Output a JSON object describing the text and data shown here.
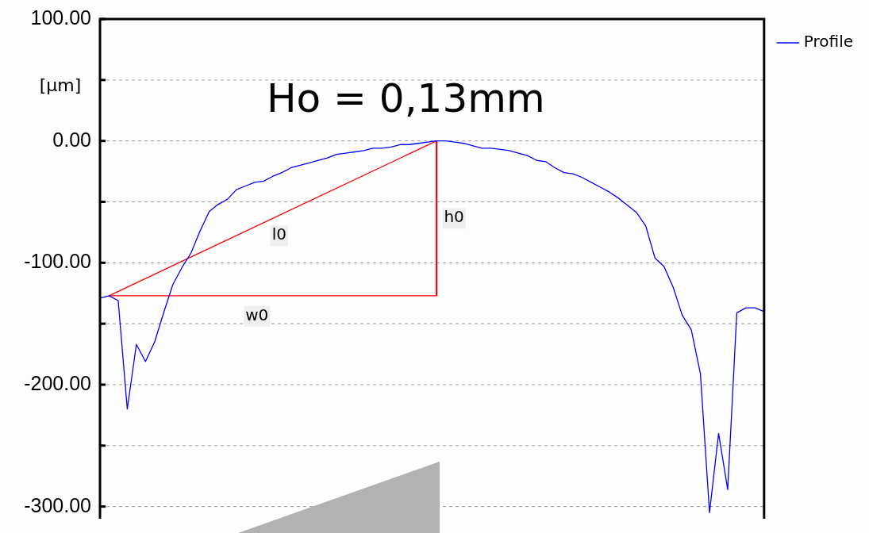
{
  "chart_data": {
    "type": "line",
    "ylabel": "[µm]",
    "annotations": [
      "Ho = 0,13mm"
    ],
    "categories": [
      null,
      null,
      null,
      null,
      null,
      null,
      null,
      null,
      null,
      null,
      null,
      null,
      null,
      null,
      null,
      null,
      null,
      null,
      null,
      null,
      null,
      null,
      null,
      null,
      null,
      null,
      null,
      null,
      null,
      null,
      null,
      null,
      null,
      null,
      null,
      null,
      null,
      null,
      null,
      null,
      null,
      null,
      null,
      null,
      null,
      null,
      null,
      null,
      null,
      null,
      null,
      null,
      null,
      null,
      null,
      null,
      null,
      null,
      null,
      null,
      null,
      null,
      null,
      null,
      null,
      null,
      null,
      null,
      null,
      null,
      null,
      null,
      null,
      null
    ],
    "series": [
      {
        "name": "Profile",
        "color": "#0000ff",
        "values": [
          -129,
          -127,
          -131,
          -220,
          -167,
          -181,
          -165,
          -141,
          -118,
          -104,
          -92,
          -74,
          -58,
          -52,
          -48,
          -40,
          -37,
          -34,
          -33,
          -29,
          -26,
          -22,
          -20,
          -18,
          -16,
          -14,
          -11,
          -10,
          -9,
          -8,
          -6,
          -6,
          -5,
          -3,
          -3,
          -2,
          -1,
          0,
          0,
          -1,
          -2,
          -4,
          -6,
          -6,
          -7,
          -8,
          -10,
          -12,
          -16,
          -17,
          -22,
          -26,
          -27,
          -30,
          -34,
          -38,
          -42,
          -47,
          -53,
          -59,
          -70,
          -96,
          -103,
          -120,
          -143,
          -155,
          -191,
          -305,
          -240,
          -286,
          -141,
          -137,
          -137,
          -140
        ]
      },
      {
        "name": "l0",
        "color": "#ff0000",
        "values": [
          null,
          -127,
          null,
          null,
          null,
          null,
          null,
          null,
          null,
          null,
          null,
          null,
          null,
          null,
          null,
          null,
          null,
          null,
          null,
          null,
          null,
          null,
          null,
          null,
          null,
          null,
          null,
          null,
          null,
          null,
          null,
          null,
          null,
          null,
          null,
          null,
          null,
          0,
          null,
          null,
          null,
          null,
          null,
          null,
          null,
          null,
          null,
          null,
          null,
          null,
          null,
          null,
          null,
          null,
          null,
          null,
          null,
          null,
          null,
          null,
          null,
          null,
          null,
          null,
          null,
          null,
          null,
          null,
          null,
          null,
          null,
          null,
          null,
          null
        ]
      },
      {
        "name": "h0",
        "type": "bar",
        "color": "#ff0000",
        "values": [
          null,
          null,
          null,
          null,
          null,
          null,
          null,
          null,
          null,
          null,
          null,
          null,
          null,
          null,
          null,
          null,
          null,
          null,
          null,
          null,
          null,
          null,
          null,
          null,
          null,
          null,
          null,
          null,
          null,
          null,
          null,
          null,
          null,
          null,
          null,
          null,
          null,
          -127,
          null,
          null,
          null,
          null,
          null,
          null,
          null,
          null,
          null,
          null,
          null,
          null,
          null,
          null,
          null,
          null,
          null,
          null,
          null,
          null,
          null,
          null,
          null,
          null,
          null,
          null,
          null,
          null,
          null,
          null,
          null,
          null,
          null,
          null,
          null,
          null
        ]
      },
      {
        "name": "w0",
        "color": "#ff0000",
        "values": [
          null,
          -127,
          null,
          null,
          null,
          null,
          null,
          null,
          null,
          null,
          null,
          null,
          null,
          null,
          null,
          null,
          null,
          null,
          null,
          null,
          null,
          null,
          null,
          null,
          null,
          null,
          null,
          null,
          null,
          null,
          null,
          null,
          null,
          null,
          null,
          null,
          null,
          -127,
          null,
          null,
          null,
          null,
          null,
          null,
          null,
          null,
          null,
          null,
          null,
          null,
          null,
          null,
          null,
          null,
          null,
          null,
          null,
          null,
          null,
          null,
          null,
          null,
          null,
          null,
          null,
          null,
          null,
          null,
          null,
          null,
          null,
          null,
          null,
          null
        ]
      }
    ],
    "ylim": [
      -310,
      100
    ],
    "yticks": [
      {
        "value": 100,
        "label": "100.00"
      },
      {
        "value": 50,
        "label": null
      },
      {
        "value": 0,
        "label": "0.00"
      },
      {
        "value": -50,
        "label": null
      },
      {
        "value": -100,
        "label": "-100.00"
      },
      {
        "value": -150,
        "label": null
      },
      {
        "value": -200,
        "label": "-200.00"
      },
      {
        "value": -250,
        "label": null
      },
      {
        "value": -300,
        "label": "-300.00"
      }
    ],
    "grid": "y",
    "legend": "top right",
    "tick_labels": "y",
    "marker": "none",
    "line_style": "solid"
  }
}
